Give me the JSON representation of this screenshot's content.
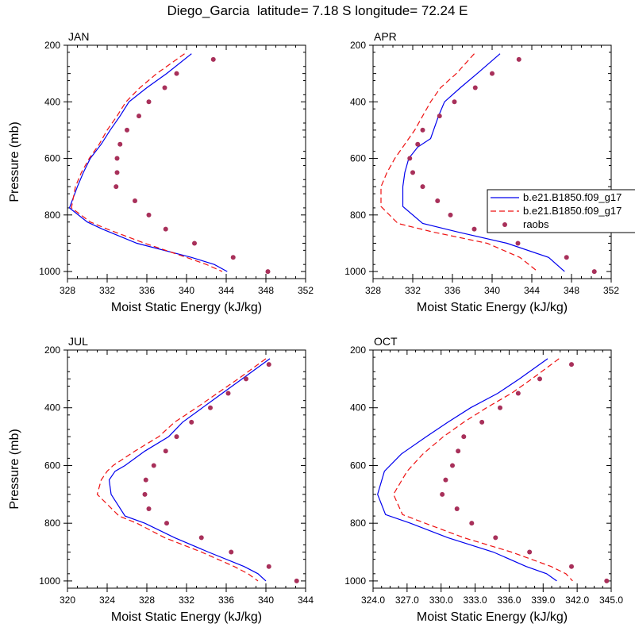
{
  "figure": {
    "title": "Diego_Garcia  latitude= 7.18 S longitude= 72.24 E"
  },
  "colors": {
    "model1": "#0000ee",
    "model2": "#ee1111",
    "raobs": "#a8305a",
    "axis": "#000000"
  },
  "legend": {
    "entries": [
      "b.e21.B1850.f09_g17",
      "b.e21.B1850.f09_g17",
      "raobs"
    ]
  },
  "chart_data": [
    {
      "type": "line",
      "panel": "JAN",
      "title": "JAN",
      "xlabel": "Moist Static Energy (kJ/kg)",
      "ylabel": "Pressure (mb)",
      "xlim": [
        328,
        352
      ],
      "ylim": [
        1025,
        200
      ],
      "xticks": [
        328,
        332,
        336,
        340,
        344,
        348,
        352
      ],
      "xtick_labels": [
        "328",
        "332",
        "336",
        "340",
        "344",
        "348",
        "352"
      ],
      "yticks": [
        200,
        400,
        600,
        800,
        1000
      ],
      "ytick_labels": [
        "200",
        "400",
        "600",
        "800",
        "1000"
      ],
      "series": [
        {
          "name": "b.e21.B1850.f09_g17",
          "style": "solid",
          "x": [
            340.5,
            338.0,
            336.0,
            334.2,
            333.3,
            332.3,
            331.4,
            330.3,
            329.6,
            329.0,
            328.2,
            330.0,
            331.5,
            335.0,
            340.5,
            342.8,
            344.1
          ],
          "y": [
            230,
            300,
            350,
            400,
            450,
            500,
            550,
            600,
            650,
            700,
            775,
            825,
            850,
            900,
            950,
            975,
            1000
          ]
        },
        {
          "name": "b.e21.B1850.f09_g17",
          "style": "dashed",
          "x": [
            339.8,
            337.0,
            335.3,
            333.9,
            333.0,
            332.0,
            331.2,
            330.2,
            329.4,
            328.8,
            328.4,
            330.3,
            332.0,
            335.8,
            340.0,
            342.0,
            343.6
          ],
          "y": [
            230,
            300,
            350,
            400,
            450,
            500,
            550,
            600,
            650,
            700,
            775,
            825,
            850,
            900,
            950,
            975,
            1000
          ]
        },
        {
          "name": "raobs",
          "style": "markers",
          "x": [
            342.7,
            339.0,
            337.8,
            336.2,
            335.2,
            334.0,
            333.3,
            333.0,
            333.0,
            332.9,
            334.8,
            336.2,
            337.9,
            340.8,
            344.7,
            348.2
          ],
          "y": [
            250,
            300,
            350,
            400,
            450,
            500,
            550,
            600,
            650,
            700,
            750,
            800,
            850,
            900,
            950,
            1000
          ]
        }
      ]
    },
    {
      "type": "line",
      "panel": "APR",
      "title": "APR",
      "xlabel": "Moist Static Energy (kJ/kg)",
      "ylabel": "",
      "xlim": [
        328,
        352
      ],
      "ylim": [
        1025,
        200
      ],
      "xticks": [
        328,
        332,
        336,
        340,
        344,
        348,
        352
      ],
      "xtick_labels": [
        "328",
        "332",
        "336",
        "340",
        "344",
        "348",
        "352"
      ],
      "yticks": [
        200,
        400,
        600,
        800,
        1000
      ],
      "ytick_labels": [
        "200",
        "400",
        "600",
        "800",
        "1000"
      ],
      "series": [
        {
          "name": "b.e21.B1850.f09_g17",
          "style": "solid",
          "x": [
            340.8,
            338.5,
            336.8,
            335.2,
            334.6,
            333.8,
            332.5,
            331.6,
            331.2,
            331.0,
            331.0,
            333.0,
            336.5,
            341.5,
            345.7,
            347.3
          ],
          "y": [
            230,
            300,
            350,
            400,
            450,
            530,
            560,
            600,
            650,
            700,
            770,
            830,
            860,
            900,
            950,
            1000
          ]
        },
        {
          "name": "b.e21.B1850.f09_g17",
          "style": "dashed",
          "x": [
            338.2,
            336.4,
            334.8,
            333.8,
            333.0,
            332.2,
            331.2,
            330.2,
            329.4,
            328.8,
            328.8,
            330.5,
            334.0,
            339.5,
            342.8,
            344.6
          ],
          "y": [
            230,
            300,
            350,
            400,
            450,
            500,
            550,
            600,
            650,
            700,
            770,
            830,
            860,
            900,
            950,
            1000
          ]
        },
        {
          "name": "raobs",
          "style": "markers",
          "x": [
            342.7,
            340.0,
            338.3,
            336.2,
            334.7,
            333.0,
            332.5,
            331.7,
            332.0,
            333.0,
            334.5,
            335.8,
            338.2,
            342.6,
            347.5,
            350.3
          ],
          "y": [
            250,
            300,
            350,
            400,
            450,
            500,
            550,
            600,
            650,
            700,
            750,
            800,
            850,
            900,
            950,
            1000
          ]
        }
      ]
    },
    {
      "type": "line",
      "panel": "JUL",
      "title": "JUL",
      "xlabel": "Moist Static Energy (kJ/kg)",
      "ylabel": "Pressure (mb)",
      "xlim": [
        320,
        344
      ],
      "ylim": [
        1025,
        200
      ],
      "xticks": [
        320,
        324,
        328,
        332,
        336,
        340,
        344
      ],
      "xtick_labels": [
        "320",
        "324",
        "328",
        "332",
        "336",
        "340",
        "344"
      ],
      "yticks": [
        200,
        400,
        600,
        800,
        1000
      ],
      "ytick_labels": [
        "200",
        "400",
        "600",
        "800",
        "1000"
      ],
      "series": [
        {
          "name": "b.e21.B1850.f09_g17",
          "style": "solid",
          "x": [
            340.4,
            337.6,
            335.6,
            333.6,
            331.6,
            330.2,
            327.8,
            325.8,
            324.8,
            324.2,
            324.4,
            325.8,
            327.8,
            330.8,
            334.2,
            337.8,
            339.2,
            340.0
          ],
          "y": [
            230,
            300,
            350,
            400,
            450,
            500,
            550,
            600,
            620,
            650,
            700,
            775,
            800,
            850,
            900,
            950,
            975,
            1000
          ]
        },
        {
          "name": "b.e21.B1850.f09_g17",
          "style": "dashed",
          "x": [
            340.0,
            337.2,
            335.1,
            333.0,
            330.8,
            329.2,
            326.8,
            324.6,
            324.0,
            323.4,
            323.0,
            325.2,
            327.0,
            329.8,
            333.5,
            336.8,
            338.2,
            339.2
          ],
          "y": [
            230,
            300,
            350,
            400,
            450,
            500,
            550,
            600,
            620,
            650,
            700,
            775,
            800,
            850,
            900,
            950,
            975,
            1000
          ]
        },
        {
          "name": "raobs",
          "style": "markers",
          "x": [
            340.3,
            338.0,
            336.2,
            334.4,
            332.5,
            331.0,
            329.9,
            328.7,
            327.9,
            327.8,
            328.2,
            330.0,
            333.5,
            336.5,
            340.3,
            343.1
          ],
          "y": [
            250,
            300,
            350,
            400,
            450,
            500,
            550,
            600,
            650,
            700,
            750,
            800,
            850,
            900,
            950,
            1000
          ]
        }
      ]
    },
    {
      "type": "line",
      "panel": "OCT",
      "title": "OCT",
      "xlabel": "Moist Static Energy (kJ/kg)",
      "ylabel": "",
      "xlim": [
        324,
        345
      ],
      "ylim": [
        1025,
        200
      ],
      "xticks": [
        324,
        327,
        330,
        333,
        336,
        339,
        342,
        345
      ],
      "xtick_labels": [
        "324.0",
        "327.0",
        "330.0",
        "333.0",
        "336.0",
        "339.0",
        "342.0",
        "345.0"
      ],
      "yticks": [
        200,
        400,
        600,
        800,
        1000
      ],
      "ytick_labels": [
        "200",
        "400",
        "600",
        "800",
        "1000"
      ],
      "series": [
        {
          "name": "b.e21.B1850.f09_g17",
          "style": "solid",
          "x": [
            339.4,
            336.9,
            335.0,
            332.6,
            330.6,
            328.7,
            326.5,
            325.0,
            324.4,
            325.1,
            327.3,
            330.6,
            334.6,
            337.5,
            339.3,
            340.2
          ],
          "y": [
            230,
            300,
            350,
            400,
            450,
            500,
            560,
            620,
            700,
            770,
            800,
            850,
            900,
            950,
            975,
            1000
          ]
        },
        {
          "name": "b.e21.B1850.f09_g17",
          "style": "dashed",
          "x": [
            340.4,
            338.0,
            336.2,
            334.0,
            332.0,
            330.2,
            328.4,
            327.0,
            325.8,
            326.6,
            328.6,
            332.0,
            336.2,
            339.7,
            341.0,
            341.6
          ],
          "y": [
            230,
            300,
            350,
            400,
            450,
            500,
            560,
            620,
            700,
            770,
            800,
            850,
            900,
            950,
            975,
            1000
          ]
        },
        {
          "name": "raobs",
          "style": "markers",
          "x": [
            341.5,
            338.7,
            336.8,
            335.2,
            333.6,
            332.0,
            331.5,
            331.0,
            330.4,
            330.1,
            331.4,
            332.7,
            334.8,
            337.8,
            341.5,
            344.6
          ],
          "y": [
            250,
            300,
            350,
            400,
            450,
            500,
            550,
            600,
            650,
            700,
            750,
            800,
            850,
            900,
            950,
            1000
          ]
        }
      ]
    }
  ]
}
